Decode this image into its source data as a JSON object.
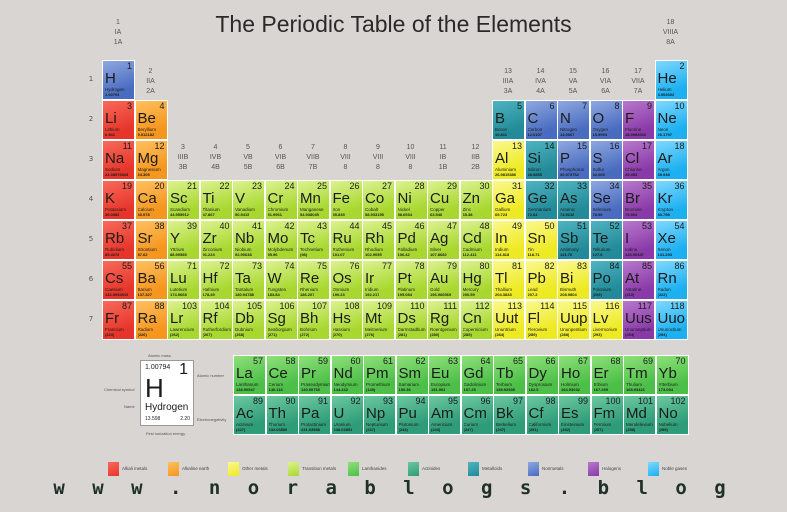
{
  "title": "The Periodic Table of the Elements",
  "website": "w w w . n o r a b l o g s . b l o g",
  "periods": [
    "1",
    "2",
    "3",
    "4",
    "5",
    "6",
    "7"
  ],
  "groups": [
    [
      "1",
      "IA",
      "1A"
    ],
    [
      "2",
      "IIA",
      "2A"
    ],
    [
      "3",
      "IIIB",
      "3B"
    ],
    [
      "4",
      "IVB",
      "4B"
    ],
    [
      "5",
      "VB",
      "5B"
    ],
    [
      "6",
      "VIB",
      "6B"
    ],
    [
      "7",
      "VIIB",
      "7B"
    ],
    [
      "8",
      "VIII",
      "8"
    ],
    [
      "9",
      "VIII",
      "8"
    ],
    [
      "10",
      "VIII",
      "8"
    ],
    [
      "11",
      "IB",
      "1B"
    ],
    [
      "12",
      "IIB",
      "2B"
    ],
    [
      "13",
      "IIIA",
      "3A"
    ],
    [
      "14",
      "IVA",
      "4A"
    ],
    [
      "15",
      "VA",
      "5A"
    ],
    [
      "16",
      "VIA",
      "6A"
    ],
    [
      "17",
      "VIIA",
      "7A"
    ],
    [
      "18",
      "VIIIA",
      "8A"
    ]
  ],
  "categories": {
    "a": {
      "label": "Alkali metals",
      "color": "#e8352b",
      "light": "#f76a5a"
    },
    "e": {
      "label": "Alkaline earth",
      "color": "#f5961e",
      "light": "#ffc060"
    },
    "o": {
      "label": "Other metals",
      "color": "#eeea22",
      "light": "#fbf890"
    },
    "t": {
      "label": "Transition metals",
      "color": "#a8d830",
      "light": "#dcf290"
    },
    "l": {
      "label": "Lanthanides",
      "color": "#4cbf48",
      "light": "#8ee07a"
    },
    "c": {
      "label": "Actinides",
      "color": "#2e9c78",
      "light": "#6cc8a0"
    },
    "m": {
      "label": "Metalloids",
      "color": "#228a98",
      "light": "#4fb4c0"
    },
    "n": {
      "label": "Nonmetals",
      "color": "#4a6cc0",
      "light": "#8ea8e0"
    },
    "h": {
      "label": "Halogens",
      "color": "#8a3aa8",
      "light": "#b878cc"
    },
    "g": {
      "label": "Noble gases",
      "color": "#1cb0f0",
      "light": "#80d8ff"
    }
  },
  "legend_order": [
    "a",
    "e",
    "o",
    "t",
    "l",
    "c",
    "m",
    "n",
    "h",
    "g"
  ],
  "key": {
    "atomic_mass_label": "Atomic mass",
    "atomic_number_label": "Atomic number",
    "symbol_label": "Chemical symbol",
    "name_label": "Name",
    "electronegativity_label": "Electronegativity",
    "ionization_label": "First ionization energy",
    "mass": "1.00794",
    "number": "1",
    "symbol": "H",
    "name": "Hydrogen",
    "ionization": "13.598",
    "electronegativity": "2.20"
  },
  "elements": [
    [
      1,
      "H",
      "Hydrogen",
      "1.00794",
      "n"
    ],
    [
      2,
      "He",
      "Helium",
      "4.002602",
      "g"
    ],
    [
      3,
      "Li",
      "Lithium",
      "6.941",
      "a"
    ],
    [
      4,
      "Be",
      "Beryllium",
      "9.012182",
      "e"
    ],
    [
      5,
      "B",
      "Boron",
      "10.811",
      "m"
    ],
    [
      6,
      "C",
      "Carbon",
      "12.0107",
      "n"
    ],
    [
      7,
      "N",
      "Nitrogen",
      "14.0067",
      "n"
    ],
    [
      8,
      "O",
      "Oxygen",
      "15.9994",
      "n"
    ],
    [
      9,
      "F",
      "Fluorine",
      "18.9984032",
      "h"
    ],
    [
      10,
      "Ne",
      "Neon",
      "20.1797",
      "g"
    ],
    [
      11,
      "Na",
      "Sodium",
      "22.98976928",
      "a"
    ],
    [
      12,
      "Mg",
      "Magnesium",
      "24.305",
      "e"
    ],
    [
      13,
      "Al",
      "Aluminium",
      "26.9815386",
      "o"
    ],
    [
      14,
      "Si",
      "Silicon",
      "28.0855",
      "m"
    ],
    [
      15,
      "P",
      "Phosphorus",
      "30.973762",
      "n"
    ],
    [
      16,
      "S",
      "Sulfur",
      "32.065",
      "n"
    ],
    [
      17,
      "Cl",
      "Chlorine",
      "35.453",
      "h"
    ],
    [
      18,
      "Ar",
      "Argon",
      "39.948",
      "g"
    ],
    [
      19,
      "K",
      "Potassium",
      "39.0983",
      "a"
    ],
    [
      20,
      "Ca",
      "Calcium",
      "40.078",
      "e"
    ],
    [
      21,
      "Sc",
      "Scandium",
      "44.955912",
      "t"
    ],
    [
      22,
      "Ti",
      "Titanium",
      "47.867",
      "t"
    ],
    [
      23,
      "V",
      "Vanadium",
      "50.9415",
      "t"
    ],
    [
      24,
      "Cr",
      "Chromium",
      "51.9961",
      "t"
    ],
    [
      25,
      "Mn",
      "Manganese",
      "54.938045",
      "t"
    ],
    [
      26,
      "Fe",
      "Iron",
      "55.845",
      "t"
    ],
    [
      27,
      "Co",
      "Cobalt",
      "58.933195",
      "t"
    ],
    [
      28,
      "Ni",
      "Nickel",
      "58.6934",
      "t"
    ],
    [
      29,
      "Cu",
      "Copper",
      "63.546",
      "t"
    ],
    [
      30,
      "Zn",
      "Zinc",
      "65.38",
      "t"
    ],
    [
      31,
      "Ga",
      "Gallium",
      "69.723",
      "o"
    ],
    [
      32,
      "Ge",
      "Germanium",
      "72.64",
      "m"
    ],
    [
      33,
      "As",
      "Arsenic",
      "74.9216",
      "m"
    ],
    [
      34,
      "Se",
      "Selenium",
      "78.96",
      "n"
    ],
    [
      35,
      "Br",
      "Bromine",
      "79.904",
      "h"
    ],
    [
      36,
      "Kr",
      "Krypton",
      "83.798",
      "g"
    ],
    [
      37,
      "Rb",
      "Rubidium",
      "85.4678",
      "a"
    ],
    [
      38,
      "Sr",
      "Strontium",
      "87.62",
      "e"
    ],
    [
      39,
      "Y",
      "Yttrium",
      "88.90585",
      "t"
    ],
    [
      40,
      "Zr",
      "Zirconium",
      "91.224",
      "t"
    ],
    [
      41,
      "Nb",
      "Niobium",
      "92.90638",
      "t"
    ],
    [
      42,
      "Mo",
      "Molybdenum",
      "95.96",
      "t"
    ],
    [
      43,
      "Tc",
      "Technetium",
      "(98)",
      "t"
    ],
    [
      44,
      "Ru",
      "Ruthenium",
      "101.07",
      "t"
    ],
    [
      45,
      "Rh",
      "Rhodium",
      "102.9055",
      "t"
    ],
    [
      46,
      "Pd",
      "Palladium",
      "106.42",
      "t"
    ],
    [
      47,
      "Ag",
      "Silver",
      "107.8682",
      "t"
    ],
    [
      48,
      "Cd",
      "Cadmium",
      "112.411",
      "t"
    ],
    [
      49,
      "In",
      "Indium",
      "114.818",
      "o"
    ],
    [
      50,
      "Sn",
      "Tin",
      "118.71",
      "o"
    ],
    [
      51,
      "Sb",
      "Antimony",
      "121.76",
      "m"
    ],
    [
      52,
      "Te",
      "Tellurium",
      "127.6",
      "m"
    ],
    [
      53,
      "I",
      "Iodine",
      "126.90447",
      "h"
    ],
    [
      54,
      "Xe",
      "Xenon",
      "131.293",
      "g"
    ],
    [
      55,
      "Cs",
      "Caesium",
      "132.9054519",
      "a"
    ],
    [
      56,
      "Ba",
      "Barium",
      "137.327",
      "e"
    ],
    [
      57,
      "La",
      "Lanthanum",
      "138.90547",
      "l"
    ],
    [
      58,
      "Ce",
      "Cerium",
      "140.116",
      "l"
    ],
    [
      59,
      "Pr",
      "Praseodymium",
      "140.90765",
      "l"
    ],
    [
      60,
      "Nd",
      "Neodymium",
      "144.242",
      "l"
    ],
    [
      61,
      "Pm",
      "Promethium",
      "(145)",
      "l"
    ],
    [
      62,
      "Sm",
      "Samarium",
      "150.36",
      "l"
    ],
    [
      63,
      "Eu",
      "Europium",
      "151.964",
      "l"
    ],
    [
      64,
      "Gd",
      "Gadolinium",
      "157.25",
      "l"
    ],
    [
      65,
      "Tb",
      "Terbium",
      "158.92535",
      "l"
    ],
    [
      66,
      "Dy",
      "Dysprosium",
      "162.5",
      "l"
    ],
    [
      67,
      "Ho",
      "Holmium",
      "164.93032",
      "l"
    ],
    [
      68,
      "Er",
      "Erbium",
      "167.259",
      "l"
    ],
    [
      69,
      "Tm",
      "Thulium",
      "168.93421",
      "l"
    ],
    [
      70,
      "Yb",
      "Ytterbium",
      "173.054",
      "l"
    ],
    [
      71,
      "Lu",
      "Lutetium",
      "174.9668",
      "t"
    ],
    [
      72,
      "Hf",
      "Hafnium",
      "178.49",
      "t"
    ],
    [
      73,
      "Ta",
      "Tantalum",
      "180.94788",
      "t"
    ],
    [
      74,
      "W",
      "Tungsten",
      "183.84",
      "t"
    ],
    [
      75,
      "Re",
      "Rhenium",
      "186.207",
      "t"
    ],
    [
      76,
      "Os",
      "Osmium",
      "190.23",
      "t"
    ],
    [
      77,
      "Ir",
      "Iridium",
      "192.217",
      "t"
    ],
    [
      78,
      "Pt",
      "Platinum",
      "195.084",
      "t"
    ],
    [
      79,
      "Au",
      "Gold",
      "196.966569",
      "t"
    ],
    [
      80,
      "Hg",
      "Mercury",
      "200.59",
      "t"
    ],
    [
      81,
      "Tl",
      "Thallium",
      "204.3833",
      "o"
    ],
    [
      82,
      "Pb",
      "Lead",
      "207.2",
      "o"
    ],
    [
      83,
      "Bi",
      "Bismuth",
      "208.9804",
      "o"
    ],
    [
      84,
      "Po",
      "Polonium",
      "(209)",
      "m"
    ],
    [
      85,
      "At",
      "Astatine",
      "(210)",
      "h"
    ],
    [
      86,
      "Rn",
      "Radon",
      "(222)",
      "g"
    ],
    [
      87,
      "Fr",
      "Francium",
      "(223)",
      "a"
    ],
    [
      88,
      "Ra",
      "Radium",
      "(226)",
      "e"
    ],
    [
      89,
      "Ac",
      "Actinium",
      "(227)",
      "c"
    ],
    [
      90,
      "Th",
      "Thorium",
      "232.03806",
      "c"
    ],
    [
      91,
      "Pa",
      "Protactinium",
      "231.03588",
      "c"
    ],
    [
      92,
      "U",
      "Uranium",
      "238.02891",
      "c"
    ],
    [
      93,
      "Np",
      "Neptunium",
      "(237)",
      "c"
    ],
    [
      94,
      "Pu",
      "Plutonium",
      "(244)",
      "c"
    ],
    [
      95,
      "Am",
      "Americium",
      "(243)",
      "c"
    ],
    [
      96,
      "Cm",
      "Curium",
      "(247)",
      "c"
    ],
    [
      97,
      "Bk",
      "Berkelium",
      "(247)",
      "c"
    ],
    [
      98,
      "Cf",
      "Californium",
      "(251)",
      "c"
    ],
    [
      99,
      "Es",
      "Einsteinium",
      "(252)",
      "c"
    ],
    [
      100,
      "Fm",
      "Fermium",
      "(257)",
      "c"
    ],
    [
      101,
      "Md",
      "Mendelevium",
      "(258)",
      "c"
    ],
    [
      102,
      "No",
      "Nobelium",
      "(259)",
      "c"
    ],
    [
      103,
      "Lr",
      "Lawrencium",
      "(262)",
      "t"
    ],
    [
      104,
      "Rf",
      "Rutherfordium",
      "(267)",
      "t"
    ],
    [
      105,
      "Db",
      "Dubnium",
      "(268)",
      "t"
    ],
    [
      106,
      "Sg",
      "Seaborgium",
      "(271)",
      "t"
    ],
    [
      107,
      "Bh",
      "Bohrium",
      "(272)",
      "t"
    ],
    [
      108,
      "Hs",
      "Hassium",
      "(270)",
      "t"
    ],
    [
      109,
      "Mt",
      "Meitnerium",
      "(276)",
      "t"
    ],
    [
      110,
      "Ds",
      "Darmstadtium",
      "(281)",
      "t"
    ],
    [
      111,
      "Rg",
      "Roentgenium",
      "(280)",
      "t"
    ],
    [
      112,
      "Cn",
      "Copernicium",
      "(285)",
      "t"
    ],
    [
      113,
      "Uut",
      "Ununtrium",
      "(284)",
      "o"
    ],
    [
      114,
      "Fl",
      "Flerovium",
      "(289)",
      "o"
    ],
    [
      115,
      "Uup",
      "Ununpentium",
      "(288)",
      "o"
    ],
    [
      116,
      "Lv",
      "Livermorium",
      "(293)",
      "o"
    ],
    [
      117,
      "Uus",
      "Ununseptium",
      "(294)",
      "h"
    ],
    [
      118,
      "Uuo",
      "Ununoctium",
      "(294)",
      "g"
    ]
  ]
}
